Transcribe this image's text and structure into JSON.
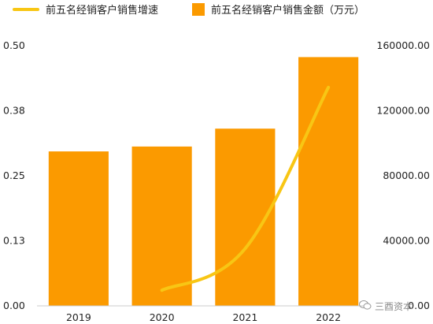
{
  "colors": {
    "bar": "#FB9A00",
    "line": "#F8C614",
    "axis": "#cccccc",
    "text": "#222222"
  },
  "legend": {
    "line_label": "前五名经销客户销售增速",
    "bar_label": "前五名经销客户销售金额（万元）"
  },
  "watermark": {
    "text": "三酉资本",
    "icon": "wechat-icon"
  },
  "chart_data": {
    "type": "bar",
    "categories": [
      "2019",
      "2020",
      "2021",
      "2022"
    ],
    "series": [
      {
        "name": "前五名经销客户销售金额（万元）",
        "type": "bar",
        "axis": "right",
        "values": [
          95000,
          98000,
          109000,
          153000
        ]
      },
      {
        "name": "前五名经销客户销售增速",
        "type": "line",
        "axis": "left",
        "values": [
          null,
          0.03,
          0.11,
          0.42
        ]
      }
    ],
    "y_left": {
      "ylim": [
        0,
        0.5
      ],
      "ticks": [
        0,
        0.125,
        0.25,
        0.375,
        0.5
      ],
      "tick_labels": [
        "0.00",
        "0.13",
        "0.25",
        "0.38",
        "0.50"
      ]
    },
    "y_right": {
      "ylim": [
        0,
        160000
      ],
      "ticks": [
        0,
        40000,
        80000,
        120000,
        160000
      ],
      "tick_labels": [
        "0.00",
        "40000.00",
        "80000.00",
        "120000.00",
        "160000.00"
      ]
    },
    "legend_position": "top",
    "grid": false
  }
}
